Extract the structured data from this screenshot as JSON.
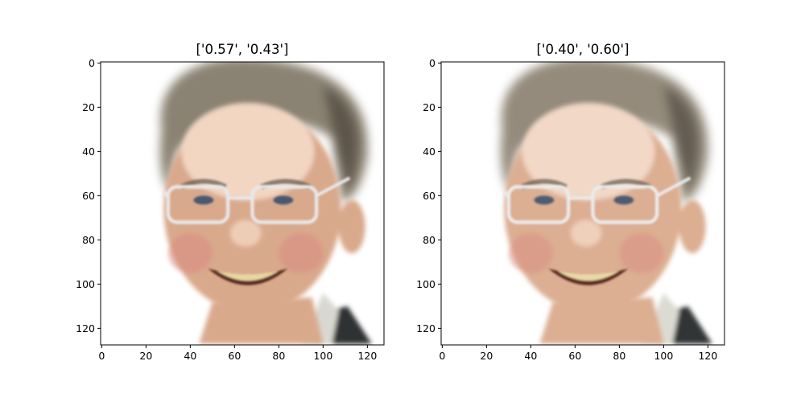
{
  "chart_data": [
    {
      "type": "image",
      "title": "['0.57', '0.43']",
      "subject": "face-photo",
      "xlim": [
        0,
        127
      ],
      "ylim": [
        127,
        0
      ],
      "xticks": [
        0,
        20,
        40,
        60,
        80,
        100,
        120
      ],
      "yticks": [
        0,
        20,
        40,
        60,
        80,
        100,
        120
      ],
      "palette": {
        "background": "#ffffff",
        "skin": "#d9a98c",
        "skin_light": "#f2d6c2",
        "cheek": "#d98a80",
        "hair": "#8a8272",
        "hair_dark": "#5e574c",
        "glasses": "#e8e8ea",
        "teeth": "#e7d7a0",
        "mouth": "#5a2a22",
        "eye": "#4a5870",
        "collar": "#d9d8d0",
        "jacket": "#2e3030"
      }
    },
    {
      "type": "image",
      "title": "['0.40', '0.60']",
      "subject": "face-photo",
      "xlim": [
        0,
        127
      ],
      "ylim": [
        127,
        0
      ],
      "xticks": [
        0,
        20,
        40,
        60,
        80,
        100,
        120
      ],
      "yticks": [
        0,
        20,
        40,
        60,
        80,
        100,
        120
      ],
      "palette": {
        "background": "#ffffff",
        "skin": "#dcae92",
        "skin_light": "#f2d8c6",
        "cheek": "#d99084",
        "hair": "#948b7b",
        "hair_dark": "#655d52",
        "glasses": "#ebebec",
        "teeth": "#e9d9a6",
        "mouth": "#5c2c24",
        "eye": "#4e5c72",
        "collar": "#dcdbd3",
        "jacket": "#333535"
      }
    }
  ]
}
